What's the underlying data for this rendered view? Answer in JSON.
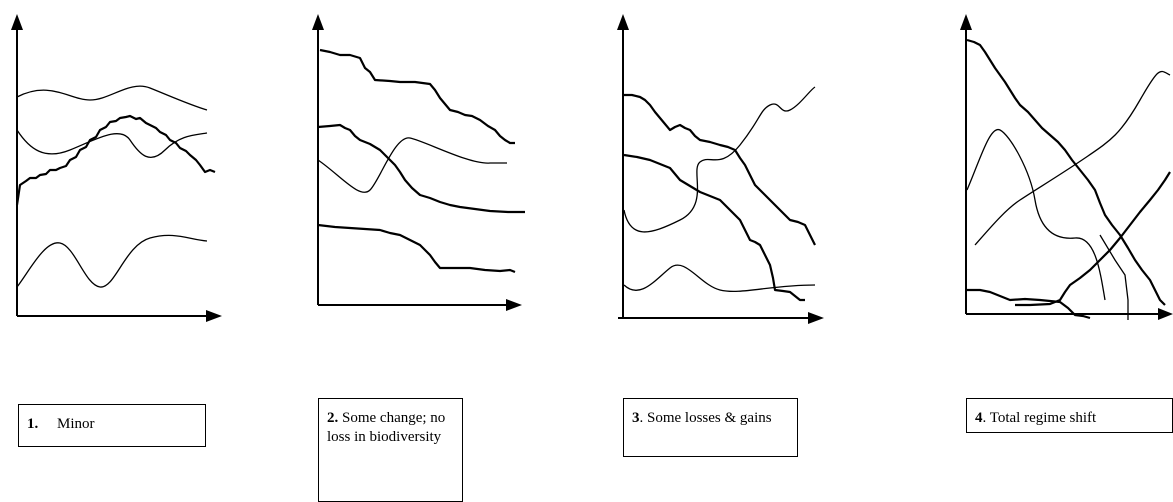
{
  "panels": [
    {
      "number": "1.",
      "label": "Minor"
    },
    {
      "number": "2.",
      "label": "Some change; no loss in biodiversity"
    },
    {
      "number": "3",
      "label": ". Some losses & gains"
    },
    {
      "number": "4",
      "label": ". Total regime shift"
    }
  ]
}
